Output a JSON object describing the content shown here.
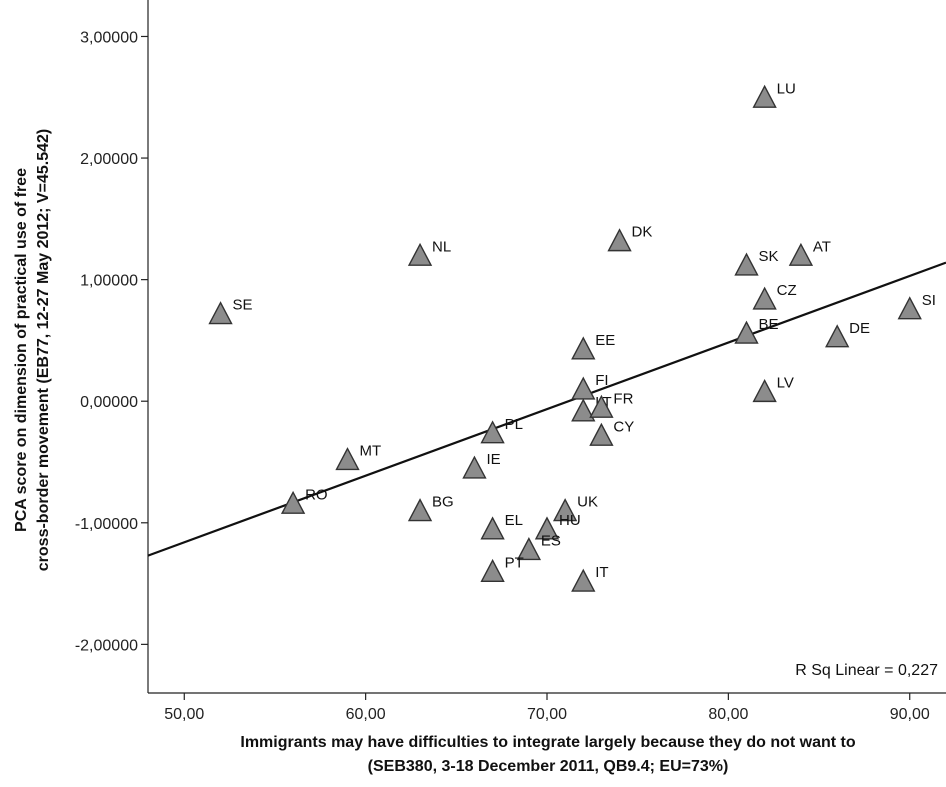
{
  "chart_data": {
    "type": "scatter",
    "xlabel_line1": "Immigrants may have difficulties to integrate largely because they do not want to",
    "xlabel_line2": "(SEB380, 3-18 December 2011, QB9.4; EU=73%)",
    "ylabel_line1": "PCA score on dimension of practical use of free",
    "ylabel_line2": "cross-border movement (EB77, 12-27 May 2012; V=45.542)",
    "xlim": [
      48,
      92
    ],
    "ylim": [
      -2.4,
      3.3
    ],
    "x_ticks": [
      50,
      60,
      70,
      80,
      90
    ],
    "x_tick_labels": [
      "50,00",
      "60,00",
      "70,00",
      "80,00",
      "90,00"
    ],
    "y_ticks": [
      -2,
      -1,
      0,
      1,
      2,
      3
    ],
    "y_tick_labels": [
      "-2,00000",
      "-1,00000",
      "0,00000",
      "1,00000",
      "2,00000",
      "3,00000"
    ],
    "annotation": "R Sq Linear = 0,227",
    "fit_line": {
      "x": [
        48,
        92
      ],
      "y": [
        -1.27,
        1.14
      ]
    },
    "points": [
      {
        "label": "LU",
        "x": 82,
        "y": 2.5
      },
      {
        "label": "DK",
        "x": 74,
        "y": 1.32
      },
      {
        "label": "NL",
        "x": 63,
        "y": 1.2
      },
      {
        "label": "SK",
        "x": 81,
        "y": 1.12
      },
      {
        "label": "AT",
        "x": 84,
        "y": 1.2
      },
      {
        "label": "SE",
        "x": 52,
        "y": 0.72
      },
      {
        "label": "CZ",
        "x": 82,
        "y": 0.84
      },
      {
        "label": "SI",
        "x": 90,
        "y": 0.76
      },
      {
        "label": "BE",
        "x": 81,
        "y": 0.56
      },
      {
        "label": "DE",
        "x": 86,
        "y": 0.53
      },
      {
        "label": "EE",
        "x": 72,
        "y": 0.43
      },
      {
        "label": "FI",
        "x": 72,
        "y": 0.1
      },
      {
        "label": "LV",
        "x": 82,
        "y": 0.08
      },
      {
        "label": "LT",
        "x": 72,
        "y": -0.08
      },
      {
        "label": "FR",
        "x": 73,
        "y": -0.05
      },
      {
        "label": "CY",
        "x": 73,
        "y": -0.28
      },
      {
        "label": "PL",
        "x": 67,
        "y": -0.26
      },
      {
        "label": "MT",
        "x": 59,
        "y": -0.48
      },
      {
        "label": "IE",
        "x": 66,
        "y": -0.55
      },
      {
        "label": "BG",
        "x": 63,
        "y": -0.9
      },
      {
        "label": "RO",
        "x": 56,
        "y": -0.84
      },
      {
        "label": "UK",
        "x": 71,
        "y": -0.9
      },
      {
        "label": "EL",
        "x": 67,
        "y": -1.05
      },
      {
        "label": "HU",
        "x": 70,
        "y": -1.05
      },
      {
        "label": "ES",
        "x": 69,
        "y": -1.22
      },
      {
        "label": "PT",
        "x": 67,
        "y": -1.4
      },
      {
        "label": "IT",
        "x": 72,
        "y": -1.48
      }
    ],
    "marker_color": "#8c8c8c",
    "marker_stroke": "#333333",
    "line_color": "#111111"
  }
}
